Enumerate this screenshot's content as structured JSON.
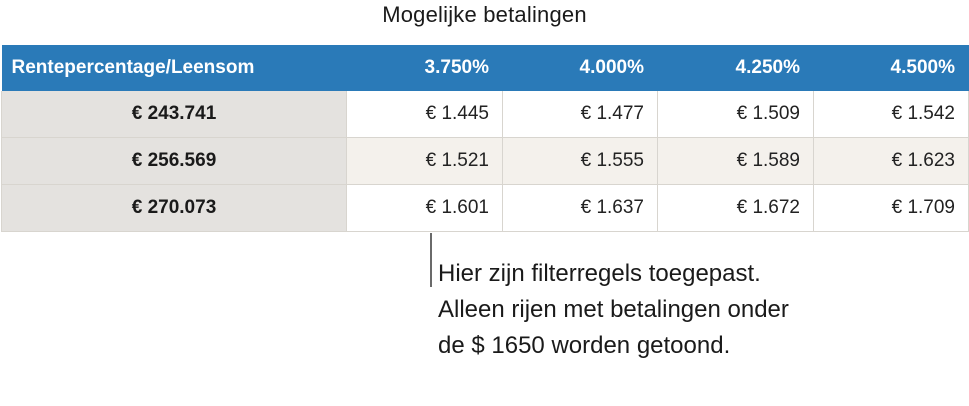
{
  "title": "Mogelijke betalingen",
  "table": {
    "corner_label": "Rentepercentage/Leensom",
    "columns": [
      "3.750%",
      "4.000%",
      "4.250%",
      "4.500%"
    ],
    "rows": [
      {
        "label": "€ 243.741",
        "values": [
          "€ 1.445",
          "€ 1.477",
          "€ 1.509",
          "€ 1.542"
        ]
      },
      {
        "label": "€ 256.569",
        "values": [
          "€ 1.521",
          "€ 1.555",
          "€ 1.589",
          "€ 1.623"
        ]
      },
      {
        "label": "€ 270.073",
        "values": [
          "€ 1.601",
          "€ 1.637",
          "€ 1.672",
          "€ 1.709"
        ]
      }
    ]
  },
  "callout": {
    "text": "Hier zijn filterregels toegepast. Alleen rijen met betalingen onder de $ 1650 worden getoond."
  },
  "colors": {
    "header_background": "#2a7ab8",
    "row_header_background": "#e4e2df",
    "alternate_row_background": "#f4f1ec"
  }
}
